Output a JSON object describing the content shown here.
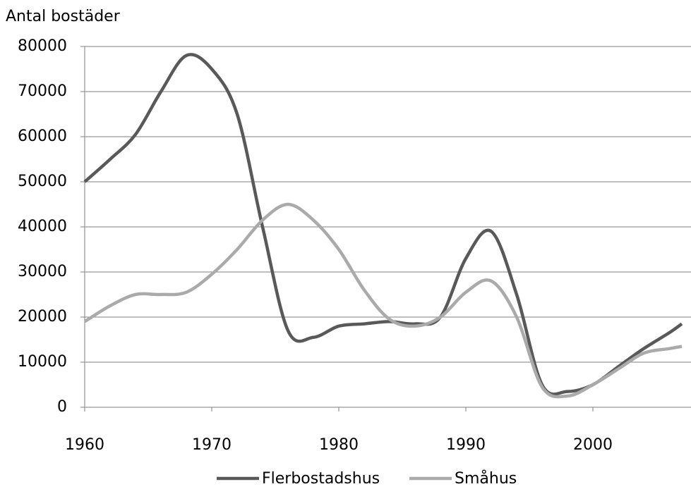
{
  "chart_data": {
    "type": "line",
    "y_label": "Antal bostäder",
    "x": [
      1960,
      1962,
      1964,
      1966,
      1968,
      1970,
      1972,
      1974,
      1976,
      1978,
      1980,
      1982,
      1984,
      1986,
      1988,
      1990,
      1992,
      1994,
      1996,
      1998,
      2000,
      2002,
      2004,
      2006,
      2007
    ],
    "series": [
      {
        "name": "Flerbostadshus",
        "color": "#595959",
        "values": [
          50000,
          55000,
          60500,
          70000,
          78000,
          75000,
          65000,
          40000,
          17000,
          15500,
          18000,
          18500,
          19000,
          18500,
          20000,
          33000,
          39000,
          25000,
          5000,
          3500,
          5000,
          9000,
          13000,
          16500,
          18500
        ]
      },
      {
        "name": "Småhus",
        "color": "#aaaaaa",
        "values": [
          19000,
          22500,
          25000,
          25000,
          25500,
          29500,
          35000,
          41500,
          45000,
          41500,
          35000,
          26000,
          19500,
          18000,
          20000,
          25500,
          28000,
          20000,
          4500,
          2500,
          5000,
          8500,
          12000,
          13000,
          13500
        ]
      }
    ],
    "xlim": [
      1960,
      2007.5
    ],
    "xticks": [
      1960,
      1970,
      1980,
      1990,
      2000
    ],
    "ylim": [
      0,
      80000
    ],
    "yticks": [
      0,
      10000,
      20000,
      30000,
      40000,
      50000,
      60000,
      70000,
      80000
    ],
    "grid": true,
    "legend": "bottom"
  }
}
